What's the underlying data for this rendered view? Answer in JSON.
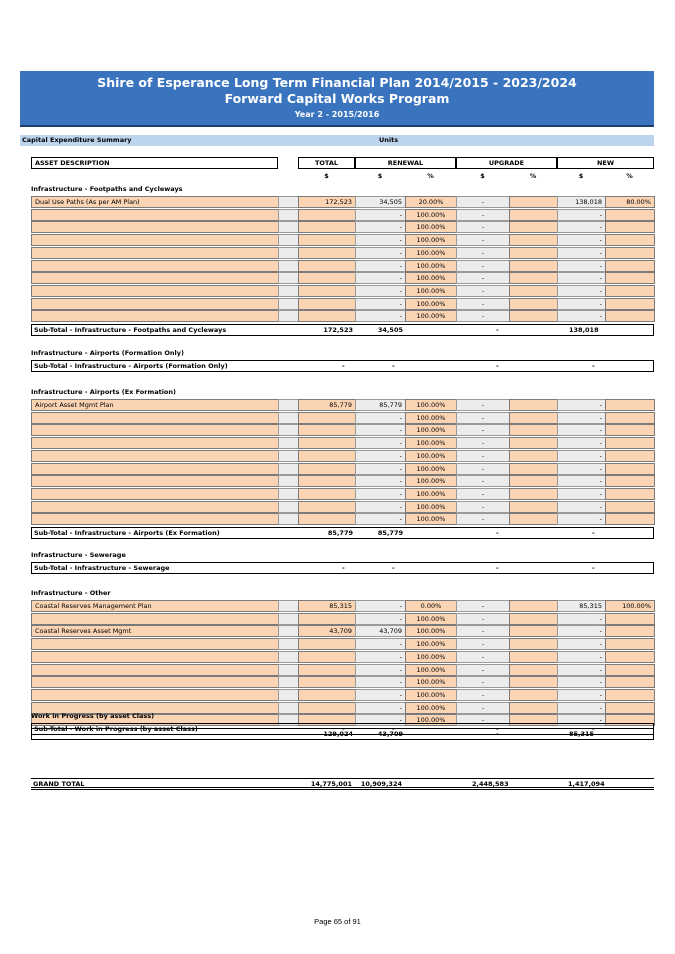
{
  "header": {
    "title": "Shire of Esperance Long Term Financial Plan 2014/2015 - 2023/2024",
    "subtitle": "Forward Capital Works Program",
    "year": "Year 2 - 2015/2016"
  },
  "summary_bar": {
    "label": "Capital Expenditure Summary",
    "units": "Units"
  },
  "columns": {
    "desc": "ASSET DESCRIPTION",
    "total": "TOTAL",
    "renewal": "RENEWAL",
    "upgrade": "UPGRADE",
    "new": "NEW",
    "dollar": "$",
    "percent": "%"
  },
  "sections": [
    {
      "heading": "Infrastructure - Footpaths and Cycleways",
      "rows": [
        {
          "desc": "Dual Use Paths (As per AM Plan)",
          "total": "172,523",
          "ren": "34,505",
          "renp": "20.00%",
          "upg": "-",
          "upgp": "",
          "new": "138,018",
          "newp": "80.00%"
        },
        {
          "desc": "",
          "total": "",
          "ren": "-",
          "renp": "100.00%",
          "upg": "-",
          "upgp": "",
          "new": "-",
          "newp": ""
        },
        {
          "desc": "",
          "total": "",
          "ren": "-",
          "renp": "100.00%",
          "upg": "-",
          "upgp": "",
          "new": "-",
          "newp": ""
        },
        {
          "desc": "",
          "total": "",
          "ren": "-",
          "renp": "100.00%",
          "upg": "-",
          "upgp": "",
          "new": "-",
          "newp": ""
        },
        {
          "desc": "",
          "total": "",
          "ren": "-",
          "renp": "100.00%",
          "upg": "-",
          "upgp": "",
          "new": "-",
          "newp": ""
        },
        {
          "desc": "",
          "total": "",
          "ren": "-",
          "renp": "100.00%",
          "upg": "-",
          "upgp": "",
          "new": "-",
          "newp": ""
        },
        {
          "desc": "",
          "total": "",
          "ren": "-",
          "renp": "100.00%",
          "upg": "-",
          "upgp": "",
          "new": "-",
          "newp": ""
        },
        {
          "desc": "",
          "total": "",
          "ren": "-",
          "renp": "100.00%",
          "upg": "-",
          "upgp": "",
          "new": "-",
          "newp": ""
        },
        {
          "desc": "",
          "total": "",
          "ren": "-",
          "renp": "100.00%",
          "upg": "-",
          "upgp": "",
          "new": "-",
          "newp": ""
        },
        {
          "desc": "",
          "total": "",
          "ren": "-",
          "renp": "100.00%",
          "upg": "-",
          "upgp": "",
          "new": "-",
          "newp": ""
        }
      ],
      "subtotal": {
        "label": "Sub-Total - Infrastructure - Footpaths and Cycleways",
        "total": "172,523",
        "ren": "34,505",
        "upg": "-",
        "new": "138,018"
      }
    },
    {
      "heading": "Infrastructure - Airports (Formation Only)",
      "rows": [],
      "subtotal": {
        "label": "Sub-Total - Infrastructure - Airports (Formation Only)",
        "total": "-",
        "ren": "-",
        "upg": "-",
        "new": "-"
      }
    },
    {
      "heading": "Infrastructure - Airports (Ex Formation)",
      "rows": [
        {
          "desc": "Airport Asset Mgmt Plan",
          "total": "85,779",
          "ren": "85,779",
          "renp": "100.00%",
          "upg": "-",
          "upgp": "",
          "new": "-",
          "newp": ""
        },
        {
          "desc": "",
          "total": "",
          "ren": "-",
          "renp": "100.00%",
          "upg": "-",
          "upgp": "",
          "new": "-",
          "newp": ""
        },
        {
          "desc": "",
          "total": "",
          "ren": "-",
          "renp": "100.00%",
          "upg": "-",
          "upgp": "",
          "new": "-",
          "newp": ""
        },
        {
          "desc": "",
          "total": "",
          "ren": "-",
          "renp": "100.00%",
          "upg": "-",
          "upgp": "",
          "new": "-",
          "newp": ""
        },
        {
          "desc": "",
          "total": "",
          "ren": "-",
          "renp": "100.00%",
          "upg": "-",
          "upgp": "",
          "new": "-",
          "newp": ""
        },
        {
          "desc": "",
          "total": "",
          "ren": "-",
          "renp": "100.00%",
          "upg": "-",
          "upgp": "",
          "new": "-",
          "newp": ""
        },
        {
          "desc": "",
          "total": "",
          "ren": "-",
          "renp": "100.00%",
          "upg": "-",
          "upgp": "",
          "new": "-",
          "newp": ""
        },
        {
          "desc": "",
          "total": "",
          "ren": "-",
          "renp": "100.00%",
          "upg": "-",
          "upgp": "",
          "new": "-",
          "newp": ""
        },
        {
          "desc": "",
          "total": "",
          "ren": "-",
          "renp": "100.00%",
          "upg": "-",
          "upgp": "",
          "new": "-",
          "newp": ""
        },
        {
          "desc": "",
          "total": "",
          "ren": "-",
          "renp": "100.00%",
          "upg": "-",
          "upgp": "",
          "new": "-",
          "newp": ""
        }
      ],
      "subtotal": {
        "label": "Sub-Total - Infrastructure - Airports (Ex Formation)",
        "total": "85,779",
        "ren": "85,779",
        "upg": "-",
        "new": "-"
      }
    },
    {
      "heading": "Infrastructure - Sewerage",
      "rows": [],
      "subtotal": {
        "label": "Sub-Total - Infrastructure - Sewerage",
        "total": "-",
        "ren": "-",
        "upg": "-",
        "new": "-"
      }
    },
    {
      "heading": "Infrastructure - Other",
      "rows": [
        {
          "desc": "Coastal Reserves Management Plan",
          "total": "85,315",
          "ren": "-",
          "renp": "0.00%",
          "upg": "-",
          "upgp": "",
          "new": "85,315",
          "newp": "100.00%"
        },
        {
          "desc": "",
          "total": "",
          "ren": "-",
          "renp": "100.00%",
          "upg": "-",
          "upgp": "",
          "new": "-",
          "newp": ""
        },
        {
          "desc": "Coastal Reserves Asset Mgmt",
          "total": "43,709",
          "ren": "43,709",
          "renp": "100.00%",
          "upg": "-",
          "upgp": "",
          "new": "-",
          "newp": ""
        },
        {
          "desc": "",
          "total": "",
          "ren": "-",
          "renp": "100.00%",
          "upg": "-",
          "upgp": "",
          "new": "-",
          "newp": ""
        },
        {
          "desc": "",
          "total": "",
          "ren": "-",
          "renp": "100.00%",
          "upg": "-",
          "upgp": "",
          "new": "-",
          "newp": ""
        },
        {
          "desc": "",
          "total": "",
          "ren": "-",
          "renp": "100.00%",
          "upg": "-",
          "upgp": "",
          "new": "-",
          "newp": ""
        },
        {
          "desc": "",
          "total": "",
          "ren": "-",
          "renp": "100.00%",
          "upg": "-",
          "upgp": "",
          "new": "-",
          "newp": ""
        },
        {
          "desc": "",
          "total": "",
          "ren": "-",
          "renp": "100.00%",
          "upg": "-",
          "upgp": "",
          "new": "-",
          "newp": ""
        },
        {
          "desc": "",
          "total": "",
          "ren": "-",
          "renp": "100.00%",
          "upg": "-",
          "upgp": "",
          "new": "-",
          "newp": ""
        },
        {
          "desc": "",
          "total": "",
          "ren": "-",
          "renp": "100.00%",
          "upg": "-",
          "upgp": "",
          "new": "-",
          "newp": ""
        }
      ],
      "subtotal": {
        "label": "",
        "total": "129,024",
        "ren": "43,709",
        "upg": "-",
        "new": "85,315"
      }
    },
    {
      "heading": "Work in Progress (by asset Class)",
      "rows": [],
      "subtotal": {
        "label": "Sub-Total - Work in Progress (by asset Class)",
        "total": "-",
        "ren": "-",
        "upg": "-",
        "new": "-"
      }
    }
  ],
  "grand_total": {
    "label": "GRAND TOTAL",
    "total": "14,775,001",
    "ren": "10,909,324",
    "upg": "2,448,583",
    "new": "1,417,094"
  },
  "footer": "Page 65 of 91",
  "colors": {
    "banner": "#3a74bf",
    "summary_bar": "#bcd4ee",
    "input_cell": "#fbd4b4"
  }
}
